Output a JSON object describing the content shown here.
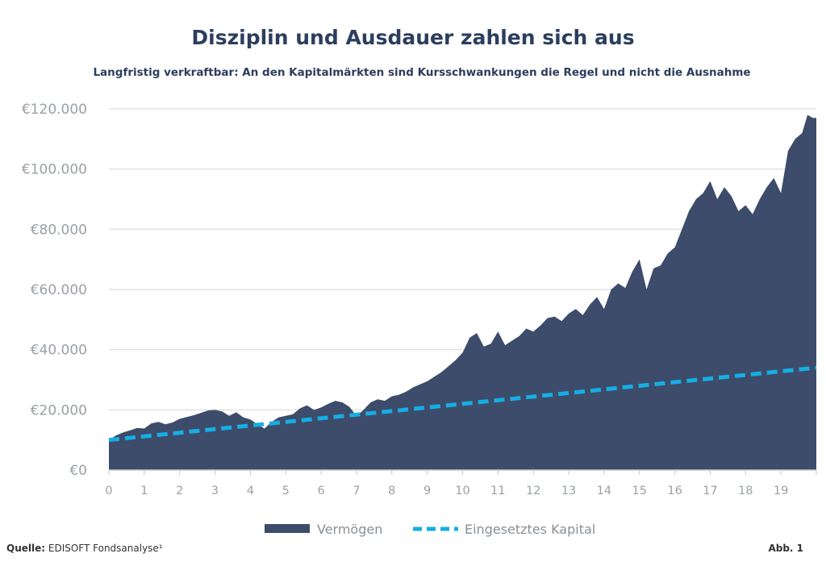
{
  "title": "Disziplin und Ausdauer zahlen sich aus",
  "subtitle": "Langfristig verkraftbar: An den Kapitalmärkten sind Kursschwankungen die Regel und nicht die Ausnahme",
  "footer": {
    "source_label": "Quelle:",
    "source_value": "EDISOFT Fondsanalyse¹",
    "figure_label": "Abb. 1"
  },
  "colors": {
    "area": "#3c4c6a",
    "line": "#16aee4",
    "grid": "#e2e2e2",
    "text": "#2c3e5e"
  },
  "chart_data": {
    "type": "area",
    "xlim": [
      0,
      20
    ],
    "ylim": [
      0,
      120000
    ],
    "x_ticks": [
      "0",
      "1",
      "2",
      "3",
      "4",
      "5",
      "6",
      "7",
      "8",
      "9",
      "10",
      "11",
      "12",
      "13",
      "14",
      "15",
      "16",
      "17",
      "18",
      "19"
    ],
    "y_ticks": [
      {
        "value": 0,
        "label": "€0"
      },
      {
        "value": 20000,
        "label": "€20.000"
      },
      {
        "value": 40000,
        "label": "€40.000"
      },
      {
        "value": 60000,
        "label": "€60.000"
      },
      {
        "value": 80000,
        "label": "€80.000"
      },
      {
        "value": 100000,
        "label": "€100.000"
      },
      {
        "value": 120000,
        "label": "€120.000"
      }
    ],
    "grid": true,
    "legend_position": "bottom",
    "series": [
      {
        "name": "Vermögen",
        "style": "area",
        "x": [
          0,
          0.2,
          0.4,
          0.6,
          0.8,
          1.0,
          1.2,
          1.4,
          1.6,
          1.8,
          2.0,
          2.2,
          2.4,
          2.6,
          2.8,
          3.0,
          3.2,
          3.4,
          3.6,
          3.8,
          4.0,
          4.2,
          4.4,
          4.6,
          4.8,
          5.0,
          5.2,
          5.4,
          5.6,
          5.8,
          6.0,
          6.2,
          6.4,
          6.6,
          6.8,
          7.0,
          7.2,
          7.4,
          7.6,
          7.8,
          8.0,
          8.2,
          8.4,
          8.6,
          8.8,
          9.0,
          9.2,
          9.4,
          9.6,
          9.8,
          10.0,
          10.2,
          10.4,
          10.6,
          10.8,
          11.0,
          11.2,
          11.4,
          11.6,
          11.8,
          12.0,
          12.2,
          12.4,
          12.6,
          12.8,
          13.0,
          13.2,
          13.4,
          13.6,
          13.8,
          14.0,
          14.2,
          14.4,
          14.6,
          14.8,
          15.0,
          15.2,
          15.4,
          15.6,
          15.8,
          16.0,
          16.2,
          16.4,
          16.6,
          16.8,
          17.0,
          17.2,
          17.4,
          17.6,
          17.8,
          18.0,
          18.2,
          18.4,
          18.6,
          18.8,
          19.0,
          19.2,
          19.4,
          19.6,
          19.75,
          19.9,
          20.0
        ],
        "values": [
          10000,
          11500,
          12500,
          13200,
          14000,
          13800,
          15500,
          16000,
          15200,
          15800,
          17000,
          17600,
          18200,
          19000,
          19800,
          20000,
          19500,
          18000,
          19200,
          17500,
          16800,
          15200,
          13800,
          16000,
          17500,
          18000,
          18500,
          20500,
          21500,
          20000,
          20800,
          22000,
          23000,
          22500,
          21000,
          18000,
          20000,
          22500,
          23500,
          23000,
          24500,
          25000,
          26000,
          27500,
          28500,
          29500,
          31000,
          32500,
          34500,
          36500,
          39000,
          44000,
          45500,
          41000,
          42000,
          46000,
          41500,
          43000,
          44500,
          47000,
          46000,
          48000,
          50500,
          51000,
          49500,
          52000,
          53500,
          51500,
          55000,
          57500,
          53500,
          60000,
          62000,
          60500,
          66000,
          70000,
          60000,
          67000,
          68000,
          72000,
          74000,
          80000,
          86000,
          90000,
          92000,
          96000,
          90000,
          94000,
          91000,
          86000,
          88000,
          85000,
          90000,
          94000,
          97000,
          92000,
          106000,
          110000,
          112000,
          118000,
          117000,
          117000
        ]
      },
      {
        "name": "Eingesetztes Kapital",
        "style": "dashed-line",
        "x": [
          0,
          20
        ],
        "values": [
          10000,
          34000
        ]
      }
    ]
  }
}
